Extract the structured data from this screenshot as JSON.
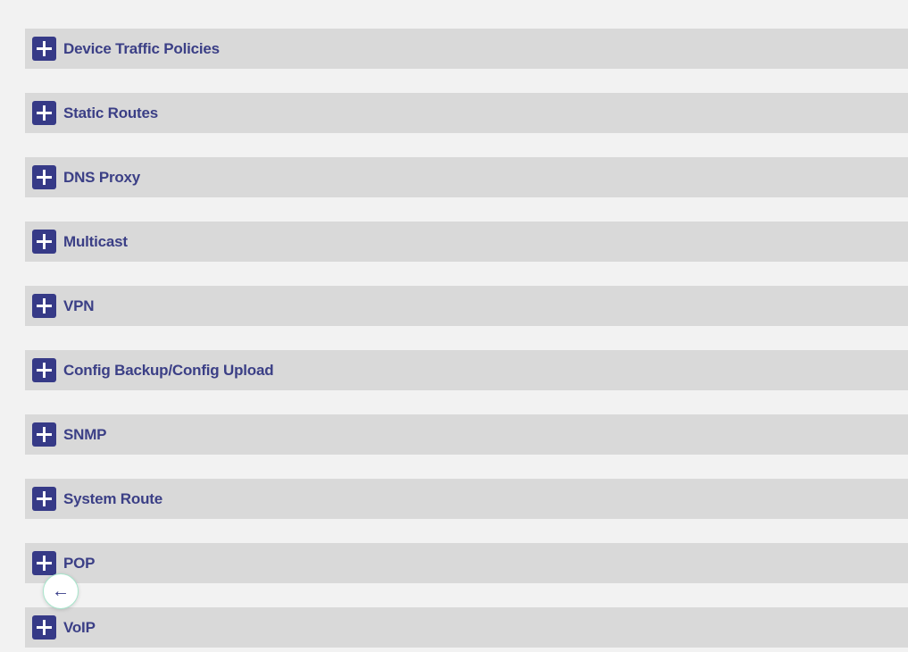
{
  "sections": [
    {
      "label": "Device Traffic Policies"
    },
    {
      "label": "Static Routes"
    },
    {
      "label": "DNS Proxy"
    },
    {
      "label": "Multicast"
    },
    {
      "label": "VPN"
    },
    {
      "label": "Config Backup/Config Upload"
    },
    {
      "label": "SNMP"
    },
    {
      "label": "System Route"
    },
    {
      "label": "POP"
    },
    {
      "label": "VoIP"
    }
  ],
  "icons": {
    "expand": "plus-icon",
    "back": "arrow-left-icon"
  },
  "back_button": {
    "glyph": "←"
  },
  "colors": {
    "accent": "#363a87",
    "row_bg": "#d9d9d9",
    "page_bg": "#f2f2f2"
  }
}
